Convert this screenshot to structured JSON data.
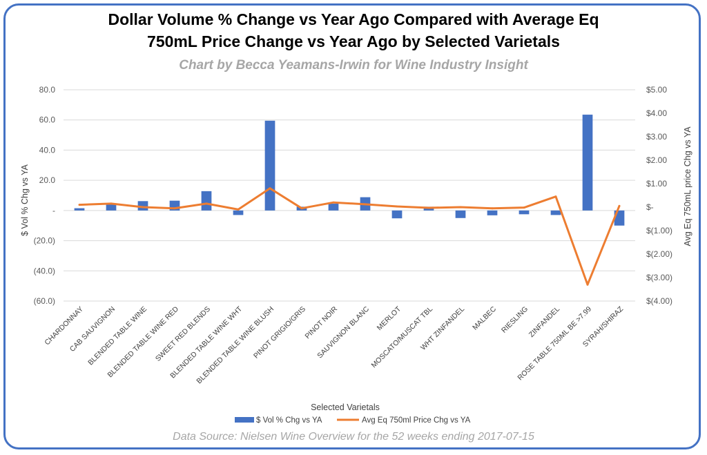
{
  "source_note": "Data Source: Nielsen Wine Overview for the 52 weeks ending 2017-07-15",
  "colors": {
    "frame": "#4472c4",
    "bar": "#4472c4",
    "line": "#ed7d31",
    "grid": "#d9d9d9",
    "subtitle": "#a6a6a6"
  },
  "chart_data": {
    "type": "bar",
    "combo": "bar-line-dual-axis",
    "title_line1": "Dollar Volume % Change vs Year Ago Compared with Average Eq",
    "title_line2": "750mL Price Change vs Year Ago by Selected Varietals",
    "subtitle": "Chart by Becca Yeamans-Irwin for Wine Industry Insight",
    "xlabel": "Selected Varietals",
    "ylabel": "$ Vol % Chg vs YA",
    "y2label": "Avg Eq 750mL price Chg vs YA",
    "ylim": [
      -60,
      80
    ],
    "y2lim": [
      -4,
      5
    ],
    "yticks": [
      80,
      60,
      40,
      20,
      0,
      -20,
      -40,
      -60
    ],
    "ytick_labels": [
      "80.0",
      "60.0",
      "40.0",
      "20.0",
      "-",
      "(20.0)",
      "(40.0)",
      "(60.0)"
    ],
    "y2ticks": [
      5,
      4,
      3,
      2,
      1,
      0,
      -1,
      -2,
      -3,
      -4
    ],
    "y2tick_labels": [
      "$5.00",
      "$4.00",
      "$3.00",
      "$2.00",
      "$1.00",
      "$-",
      "$(1.00)",
      "$(2.00)",
      "$(3.00)",
      "$(4.00)"
    ],
    "grid": "horizontal",
    "legend": "bottom",
    "categories": [
      "CHARDONNAY",
      "CAB SAUVIGNON",
      "BLENDED TABLE WINE",
      "BLENDED TABLE WINE RED",
      "SWEET RED BLENDS",
      "BLENDED TABLE WINE WHT",
      "BLENDED TABLE WINE BLUSH",
      "PINOT GRIGIO/GRIS",
      "PINOT NOIR",
      "SAUVIGNON BLANC",
      "MERLOT",
      "MOSCATO/MUSCAT TBL",
      "WHT ZINFANDEL",
      "MALBEC",
      "RIESLING",
      "ZINFANDEL",
      "ROSE TABLE 750ML BE >7.99",
      "SYRAH/SHIRAZ"
    ],
    "series": [
      {
        "name": "$ Vol % Chg vs YA",
        "type": "bar",
        "axis": "left",
        "values": [
          1.5,
          4.5,
          6.2,
          6.5,
          12.8,
          -3.0,
          59.5,
          2.5,
          4.5,
          8.8,
          -5.2,
          2.5,
          -5.0,
          -3.2,
          -2.5,
          -3.0,
          63.5,
          -10.0
        ]
      },
      {
        "name": "Avg Eq 750ml Price Chg vs YA",
        "type": "line",
        "axis": "right",
        "values": [
          0.1,
          0.15,
          0.0,
          -0.05,
          0.15,
          -0.1,
          0.8,
          -0.05,
          0.2,
          0.12,
          0.03,
          -0.03,
          0.0,
          -0.05,
          -0.02,
          0.45,
          -3.3,
          0.05
        ]
      }
    ]
  }
}
